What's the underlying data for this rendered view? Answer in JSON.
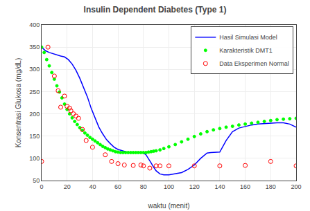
{
  "chart_data": {
    "type": "line",
    "title": "Insulin Dependent Diabetes (Type 1)",
    "xlabel": "waktu (menit)",
    "ylabel": "Konsentrasi Glukosa (mg/dL)",
    "xlim": [
      0,
      200
    ],
    "ylim": [
      50,
      400
    ],
    "xticks": [
      0,
      20,
      40,
      60,
      80,
      100,
      120,
      140,
      160,
      180,
      200
    ],
    "yticks": [
      50,
      100,
      150,
      200,
      250,
      300,
      350,
      400
    ],
    "grid": true,
    "legend": "upper right",
    "series": [
      {
        "name": "Hasil Simulasi Model",
        "type": "line",
        "line_style": "solid",
        "color": "blue",
        "x": [
          0,
          3,
          6,
          9,
          12,
          15,
          18,
          21,
          24,
          27,
          30,
          33,
          36,
          39,
          42,
          45,
          48,
          51,
          54,
          57,
          60,
          63,
          66,
          69,
          72,
          75,
          78,
          80,
          82,
          84,
          86,
          88,
          90,
          93,
          96,
          100,
          105,
          110,
          115,
          120,
          125,
          128,
          130,
          133,
          136,
          140,
          145,
          150,
          155,
          160,
          165,
          170,
          175,
          180,
          185,
          190,
          195,
          200
        ],
        "values": [
          350,
          342,
          338,
          335,
          332,
          330,
          328,
          322,
          312,
          298,
          280,
          260,
          238,
          212,
          190,
          170,
          155,
          142,
          133,
          125,
          120,
          117,
          115,
          113,
          112,
          112,
          112,
          112,
          108,
          100,
          90,
          80,
          72,
          65,
          63,
          63,
          65,
          68,
          75,
          85,
          100,
          108,
          112,
          113,
          113,
          114,
          140,
          160,
          168,
          172,
          175,
          177,
          178,
          180,
          180,
          180,
          177,
          170
        ]
      },
      {
        "name": "Karakteristik DMT1",
        "type": "scatter",
        "marker": "dot",
        "color": "lime",
        "x": [
          0,
          2,
          4,
          6,
          8,
          10,
          12,
          14,
          16,
          18,
          20,
          22,
          24,
          26,
          28,
          30,
          32,
          34,
          36,
          38,
          40,
          42,
          44,
          46,
          48,
          50,
          52,
          54,
          56,
          58,
          60,
          62,
          64,
          66,
          68,
          70,
          72,
          74,
          76,
          78,
          80,
          82,
          84,
          86,
          88,
          90,
          93,
          96,
          100,
          105,
          110,
          115,
          120,
          125,
          130,
          135,
          140,
          145,
          150,
          155,
          160,
          165,
          170,
          175,
          180,
          185,
          190,
          195,
          200
        ],
        "values": [
          350,
          338,
          322,
          308,
          293,
          278,
          263,
          249,
          236,
          222,
          210,
          200,
          191,
          183,
          176,
          169,
          163,
          157,
          152,
          147,
          143,
          139,
          135,
          131,
          127,
          124,
          121,
          119,
          117,
          115,
          114,
          113,
          113,
          113,
          113,
          113,
          113,
          113,
          113,
          113,
          113,
          113,
          114,
          115,
          116,
          117,
          119,
          122,
          126,
          131,
          137,
          143,
          149,
          155,
          160,
          164,
          167,
          170,
          172,
          175,
          177,
          179,
          181,
          183,
          185,
          187,
          188,
          189,
          190
        ]
      },
      {
        "name": "Data Eksperimen Normal",
        "type": "scatter",
        "marker": "open_circle",
        "color": "red",
        "x": [
          0,
          5,
          10,
          13,
          15,
          18,
          20,
          22,
          23,
          25,
          27,
          29,
          32,
          35,
          40,
          50,
          55,
          60,
          65,
          72,
          78,
          80,
          85,
          90,
          93,
          100,
          120,
          140,
          160,
          180,
          200
        ],
        "values": [
          93,
          350,
          285,
          252,
          215,
          240,
          217,
          213,
          207,
          200,
          195,
          190,
          165,
          140,
          125,
          108,
          93,
          88,
          85,
          84,
          85,
          83,
          78,
          83,
          83,
          83,
          83,
          83,
          84,
          93,
          83
        ]
      }
    ]
  }
}
